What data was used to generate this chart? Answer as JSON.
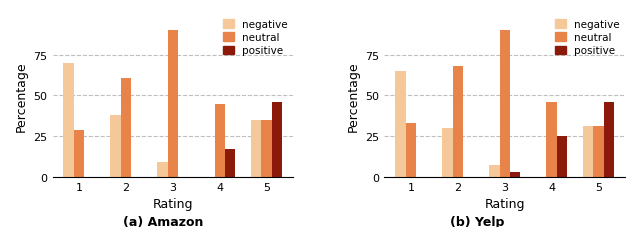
{
  "amazon": {
    "negative": [
      70,
      38,
      9,
      0,
      35
    ],
    "neutral": [
      29,
      61,
      90,
      45,
      35
    ],
    "positive": [
      0,
      0,
      0,
      17,
      46
    ]
  },
  "yelp": {
    "negative": [
      65,
      30,
      7,
      0,
      31
    ],
    "neutral": [
      33,
      68,
      90,
      46,
      31
    ],
    "positive": [
      0,
      0,
      3,
      25,
      46
    ]
  },
  "ratings": [
    1,
    2,
    3,
    4,
    5
  ],
  "colors": {
    "negative": "#F5C89A",
    "neutral": "#E8834A",
    "positive": "#8B1A0A"
  },
  "ylabel": "Percentage",
  "xlabel": "Rating",
  "ylim": [
    0,
    100
  ],
  "yticks": [
    0,
    25,
    50,
    75
  ],
  "title_amazon": "(a) Amazon",
  "title_yelp": "(b) Yelp",
  "legend_labels": [
    "negative",
    "neutral",
    "positive"
  ]
}
